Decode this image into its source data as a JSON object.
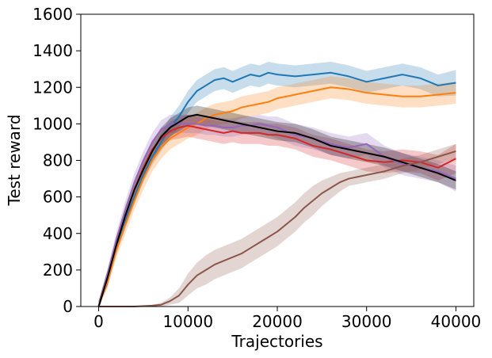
{
  "chart_data": {
    "type": "line",
    "title": "",
    "xlabel": "Trajectories",
    "ylabel": "Test reward",
    "xlim": [
      -2000,
      42000
    ],
    "ylim": [
      0,
      1600
    ],
    "xticks": [
      0,
      10000,
      20000,
      30000,
      40000
    ],
    "xtick_labels": [
      "0",
      "10000",
      "20000",
      "30000",
      "40000"
    ],
    "yticks": [
      0,
      200,
      400,
      600,
      800,
      1000,
      1200,
      1400,
      1600
    ],
    "ytick_labels": [
      "0",
      "200",
      "400",
      "600",
      "800",
      "1000",
      "1200",
      "1400",
      "1600"
    ],
    "grid": false,
    "legend": "none",
    "series": [
      {
        "name": "blue",
        "color": "#1f77b4",
        "x": [
          0,
          1000,
          2000,
          3000,
          4000,
          5000,
          6000,
          7000,
          8000,
          9000,
          10000,
          11000,
          12000,
          13000,
          14000,
          15000,
          16000,
          17000,
          18000,
          19000,
          20000,
          22000,
          24000,
          26000,
          28000,
          30000,
          32000,
          34000,
          36000,
          38000,
          40000
        ],
        "values": [
          0,
          150,
          330,
          470,
          600,
          720,
          820,
          900,
          980,
          1040,
          1120,
          1180,
          1210,
          1240,
          1250,
          1230,
          1250,
          1270,
          1260,
          1280,
          1270,
          1260,
          1270,
          1280,
          1260,
          1230,
          1250,
          1270,
          1250,
          1210,
          1225
        ],
        "band": [
          30,
          40,
          40,
          40,
          40,
          40,
          45,
          50,
          55,
          60,
          60,
          60,
          60,
          60,
          60,
          60,
          60,
          60,
          60,
          60,
          60,
          60,
          60,
          60,
          60,
          60,
          60,
          60,
          60,
          60,
          70
        ]
      },
      {
        "name": "orange",
        "color": "#ff7f0e",
        "x": [
          0,
          1000,
          2000,
          3000,
          4000,
          5000,
          6000,
          7000,
          8000,
          9000,
          10000,
          11000,
          12000,
          13000,
          14000,
          15000,
          16000,
          17000,
          18000,
          19000,
          20000,
          22000,
          24000,
          26000,
          28000,
          30000,
          32000,
          34000,
          36000,
          38000,
          40000
        ],
        "values": [
          0,
          140,
          310,
          450,
          580,
          700,
          800,
          870,
          920,
          950,
          980,
          1000,
          1030,
          1050,
          1060,
          1070,
          1090,
          1100,
          1110,
          1120,
          1140,
          1160,
          1180,
          1200,
          1190,
          1170,
          1160,
          1150,
          1150,
          1160,
          1170
        ],
        "band": [
          30,
          40,
          40,
          50,
          50,
          60,
          60,
          60,
          60,
          60,
          60,
          60,
          60,
          60,
          60,
          60,
          60,
          60,
          60,
          60,
          60,
          60,
          60,
          60,
          60,
          60,
          60,
          60,
          60,
          60,
          60
        ]
      },
      {
        "name": "red",
        "color": "#d62728",
        "x": [
          0,
          1000,
          2000,
          3000,
          4000,
          5000,
          6000,
          7000,
          8000,
          9000,
          10000,
          11000,
          12000,
          13000,
          14000,
          15000,
          16000,
          17000,
          18000,
          19000,
          20000,
          22000,
          24000,
          26000,
          28000,
          30000,
          32000,
          34000,
          36000,
          38000,
          40000
        ],
        "values": [
          0,
          160,
          350,
          500,
          640,
          760,
          860,
          920,
          960,
          980,
          990,
          980,
          970,
          960,
          950,
          960,
          950,
          950,
          950,
          940,
          940,
          920,
          880,
          860,
          830,
          800,
          790,
          800,
          790,
          760,
          810
        ],
        "band": [
          30,
          40,
          40,
          50,
          50,
          50,
          50,
          50,
          50,
          60,
          60,
          60,
          60,
          60,
          60,
          60,
          60,
          60,
          60,
          60,
          60,
          60,
          60,
          60,
          60,
          60,
          60,
          60,
          60,
          70,
          80
        ]
      },
      {
        "name": "purple",
        "color": "#9467bd",
        "x": [
          0,
          1000,
          2000,
          3000,
          4000,
          5000,
          6000,
          7000,
          8000,
          9000,
          10000,
          11000,
          12000,
          13000,
          14000,
          15000,
          16000,
          17000,
          18000,
          19000,
          20000,
          22000,
          24000,
          26000,
          28000,
          30000,
          32000,
          34000,
          36000,
          38000,
          40000
        ],
        "values": [
          0,
          170,
          370,
          530,
          680,
          800,
          900,
          970,
          1000,
          1000,
          1000,
          1000,
          990,
          990,
          980,
          980,
          990,
          990,
          1000,
          990,
          980,
          940,
          920,
          890,
          870,
          890,
          820,
          780,
          760,
          740,
          700
        ],
        "band": [
          30,
          40,
          40,
          50,
          50,
          50,
          50,
          50,
          50,
          50,
          50,
          50,
          50,
          50,
          50,
          50,
          50,
          50,
          50,
          50,
          60,
          60,
          60,
          60,
          60,
          60,
          60,
          60,
          60,
          60,
          70
        ]
      },
      {
        "name": "black",
        "color": "#000000",
        "x": [
          0,
          1000,
          2000,
          3000,
          4000,
          5000,
          6000,
          7000,
          8000,
          9000,
          10000,
          11000,
          12000,
          13000,
          14000,
          15000,
          16000,
          17000,
          18000,
          19000,
          20000,
          22000,
          24000,
          26000,
          28000,
          30000,
          32000,
          34000,
          36000,
          38000,
          40000
        ],
        "values": [
          0,
          160,
          340,
          500,
          640,
          750,
          850,
          930,
          980,
          1010,
          1040,
          1050,
          1040,
          1030,
          1020,
          1010,
          1000,
          990,
          980,
          970,
          960,
          950,
          920,
          880,
          860,
          840,
          820,
          790,
          760,
          730,
          690
        ],
        "band": [
          30,
          40,
          40,
          50,
          50,
          50,
          50,
          50,
          50,
          50,
          50,
          50,
          50,
          50,
          50,
          50,
          50,
          50,
          50,
          50,
          50,
          50,
          50,
          50,
          50,
          50,
          50,
          50,
          50,
          50,
          50
        ]
      },
      {
        "name": "brown",
        "color": "#8c564b",
        "x": [
          0,
          2000,
          4000,
          6000,
          7000,
          8000,
          9000,
          10000,
          11000,
          12000,
          13000,
          14000,
          15000,
          16000,
          17000,
          18000,
          19000,
          20000,
          21000,
          22000,
          23000,
          24000,
          25000,
          26000,
          27000,
          28000,
          29000,
          30000,
          32000,
          34000,
          36000,
          38000,
          40000
        ],
        "values": [
          0,
          0,
          0,
          5,
          10,
          30,
          60,
          120,
          170,
          200,
          230,
          250,
          270,
          290,
          320,
          350,
          380,
          410,
          450,
          490,
          540,
          580,
          620,
          650,
          680,
          700,
          710,
          720,
          740,
          770,
          790,
          820,
          850
        ],
        "band": [
          0,
          0,
          0,
          5,
          10,
          20,
          40,
          60,
          70,
          80,
          80,
          80,
          80,
          80,
          80,
          80,
          80,
          80,
          80,
          80,
          80,
          80,
          70,
          60,
          50,
          40,
          40,
          40,
          40,
          40,
          40,
          40,
          40
        ]
      }
    ]
  }
}
